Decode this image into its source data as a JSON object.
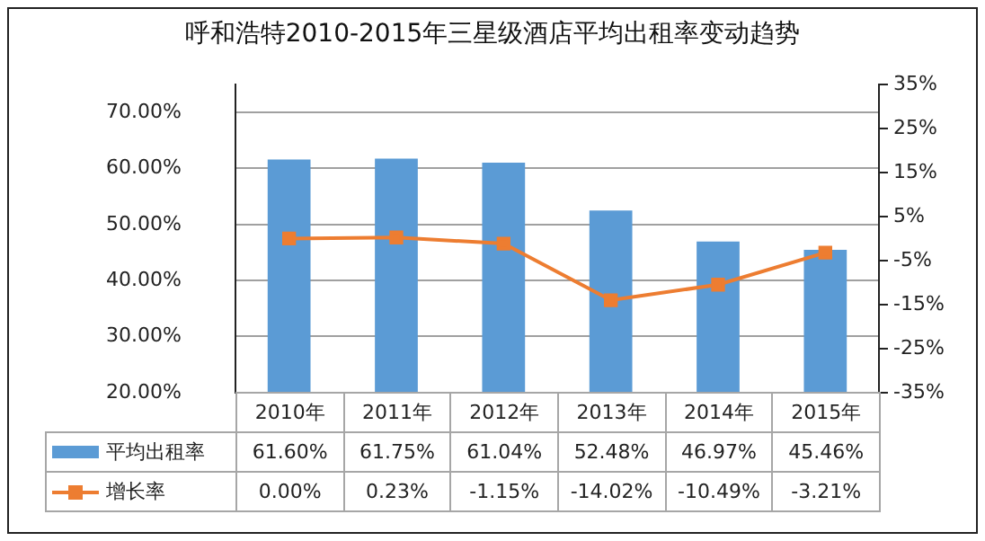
{
  "chart_data": {
    "type": "bar",
    "title": "呼和浩特2010-2015年三星级酒店平均出租率变动趋势",
    "categories": [
      "2010年",
      "2011年",
      "2012年",
      "2013年",
      "2014年",
      "2015年"
    ],
    "series": [
      {
        "name": "平均出租率",
        "type": "bar",
        "color": "#5b9bd5",
        "values": [
          61.6,
          61.75,
          61.04,
          52.48,
          46.97,
          45.46
        ],
        "value_labels": [
          "61.60%",
          "61.75%",
          "61.04%",
          "52.48%",
          "46.97%",
          "45.46%"
        ]
      },
      {
        "name": "增长率",
        "type": "line",
        "axis": "y2",
        "color": "#ed7d31",
        "values": [
          0,
          0.23,
          -1.15,
          -14.02,
          -10.49,
          -3.21
        ],
        "value_labels": [
          "0.00%",
          "0.23%",
          "-1.15%",
          "-14.02%",
          "-10.49%",
          "-3.21%"
        ]
      }
    ],
    "ylim": [
      20,
      75
    ],
    "yticks": [
      {
        "value": 20,
        "label": "20.00%"
      },
      {
        "value": 30,
        "label": "30.00%"
      },
      {
        "value": 40,
        "label": "40.00%"
      },
      {
        "value": 50,
        "label": "50.00%"
      },
      {
        "value": 60,
        "label": "60.00%"
      },
      {
        "value": 70,
        "label": "70.00%"
      }
    ],
    "y2lim": [
      -35,
      35
    ],
    "y2ticks": [
      {
        "value": -35,
        "label": "-35%"
      },
      {
        "value": -25,
        "label": "-25%"
      },
      {
        "value": -15,
        "label": "-15%"
      },
      {
        "value": -5,
        "label": "-5%"
      },
      {
        "value": 5,
        "label": "5%"
      },
      {
        "value": 15,
        "label": "15%"
      },
      {
        "value": 25,
        "label": "25%"
      },
      {
        "value": 35,
        "label": "35%"
      }
    ],
    "grid": "y",
    "legend": "bottom",
    "marker": "square",
    "line_style": "solid"
  }
}
